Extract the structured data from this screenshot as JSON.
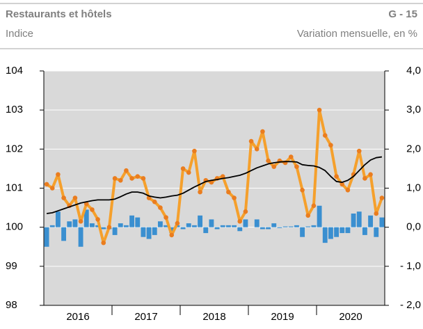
{
  "chart_data": {
    "type": "line",
    "title": "Restaurants et hôtels",
    "code": "G - 15",
    "y_label": "Indice",
    "y2_label": "Variation mensuelle, en %",
    "x_labels": [
      "2016",
      "2017",
      "2018",
      "2019",
      "2020"
    ],
    "ylim": [
      98,
      104
    ],
    "yticks": [
      98,
      99,
      100,
      101,
      102,
      103,
      104
    ],
    "y2lim": [
      -2,
      4
    ],
    "y2ticks": [
      {
        "value": -2,
        "label": "- 2,0"
      },
      {
        "value": -1,
        "label": "- 1,0"
      },
      {
        "value": 0,
        "label": "0,0"
      },
      {
        "value": 1,
        "label": "1,0"
      },
      {
        "value": 2,
        "label": "2,0"
      },
      {
        "value": 3,
        "label": "3,0"
      },
      {
        "value": 4,
        "label": "4,0"
      }
    ],
    "grid": true,
    "background": "#d9d9d9",
    "series": [
      {
        "kind": "bar",
        "axis": "y2",
        "color": "#3a8fd0",
        "values": [
          -0.5,
          0.05,
          0.4,
          -0.35,
          0.15,
          0.2,
          -0.5,
          0.45,
          0.1,
          0.05,
          -0.05,
          -0.05,
          -0.2,
          0.1,
          0.05,
          0.3,
          0.25,
          -0.25,
          -0.3,
          -0.2,
          0.15,
          0.05,
          -0.15,
          0.05,
          -0.05,
          0.1,
          0.05,
          0.3,
          -0.15,
          0.2,
          -0.05,
          0.05,
          0.05,
          0.05,
          -0.1,
          0.2,
          0.0,
          0.2,
          -0.05,
          -0.05,
          0.1,
          -0.02,
          0.02,
          0.02,
          0.05,
          -0.25,
          0.02,
          0.05,
          0.55,
          -0.4,
          -0.3,
          -0.25,
          -0.15,
          -0.15,
          0.35,
          0.4,
          -0.2,
          0.3,
          -0.25,
          0.25
        ]
      },
      {
        "kind": "line",
        "axis": "y",
        "color": "#f5a02c",
        "marker_color": "#ea7d1f",
        "markers": true,
        "width": 4,
        "values": [
          101.1,
          101.0,
          101.35,
          100.75,
          100.55,
          100.75,
          100.15,
          100.6,
          100.45,
          100.2,
          99.6,
          100.0,
          101.25,
          101.2,
          101.45,
          101.25,
          101.3,
          101.25,
          100.75,
          100.65,
          100.5,
          100.25,
          99.8,
          100.1,
          101.5,
          101.4,
          101.95,
          100.9,
          101.2,
          101.15,
          101.25,
          101.3,
          100.9,
          100.75,
          100.15,
          100.4,
          102.2,
          102.0,
          102.45,
          101.7,
          101.55,
          101.7,
          101.65,
          101.8,
          101.55,
          100.95,
          100.3,
          100.55,
          103.0,
          102.35,
          102.1,
          101.3,
          101.1,
          100.95,
          101.35,
          101.95,
          101.25,
          101.35,
          100.35,
          100.75
        ]
      },
      {
        "kind": "line",
        "axis": "y",
        "color": "#000000",
        "markers": false,
        "width": 1.8,
        "values": [
          100.35,
          100.37,
          100.42,
          100.47,
          100.52,
          100.57,
          100.62,
          100.65,
          100.68,
          100.7,
          100.7,
          100.7,
          100.72,
          100.78,
          100.85,
          100.9,
          100.9,
          100.87,
          100.8,
          100.77,
          100.75,
          100.77,
          100.8,
          100.82,
          100.87,
          100.95,
          101.03,
          101.1,
          101.17,
          101.2,
          101.22,
          101.25,
          101.27,
          101.3,
          101.33,
          101.38,
          101.45,
          101.52,
          101.57,
          101.62,
          101.65,
          101.67,
          101.68,
          101.68,
          101.67,
          101.6,
          101.58,
          101.57,
          101.53,
          101.45,
          101.3,
          101.17,
          101.15,
          101.2,
          101.3,
          101.45,
          101.6,
          101.72,
          101.78,
          101.8
        ]
      }
    ]
  }
}
